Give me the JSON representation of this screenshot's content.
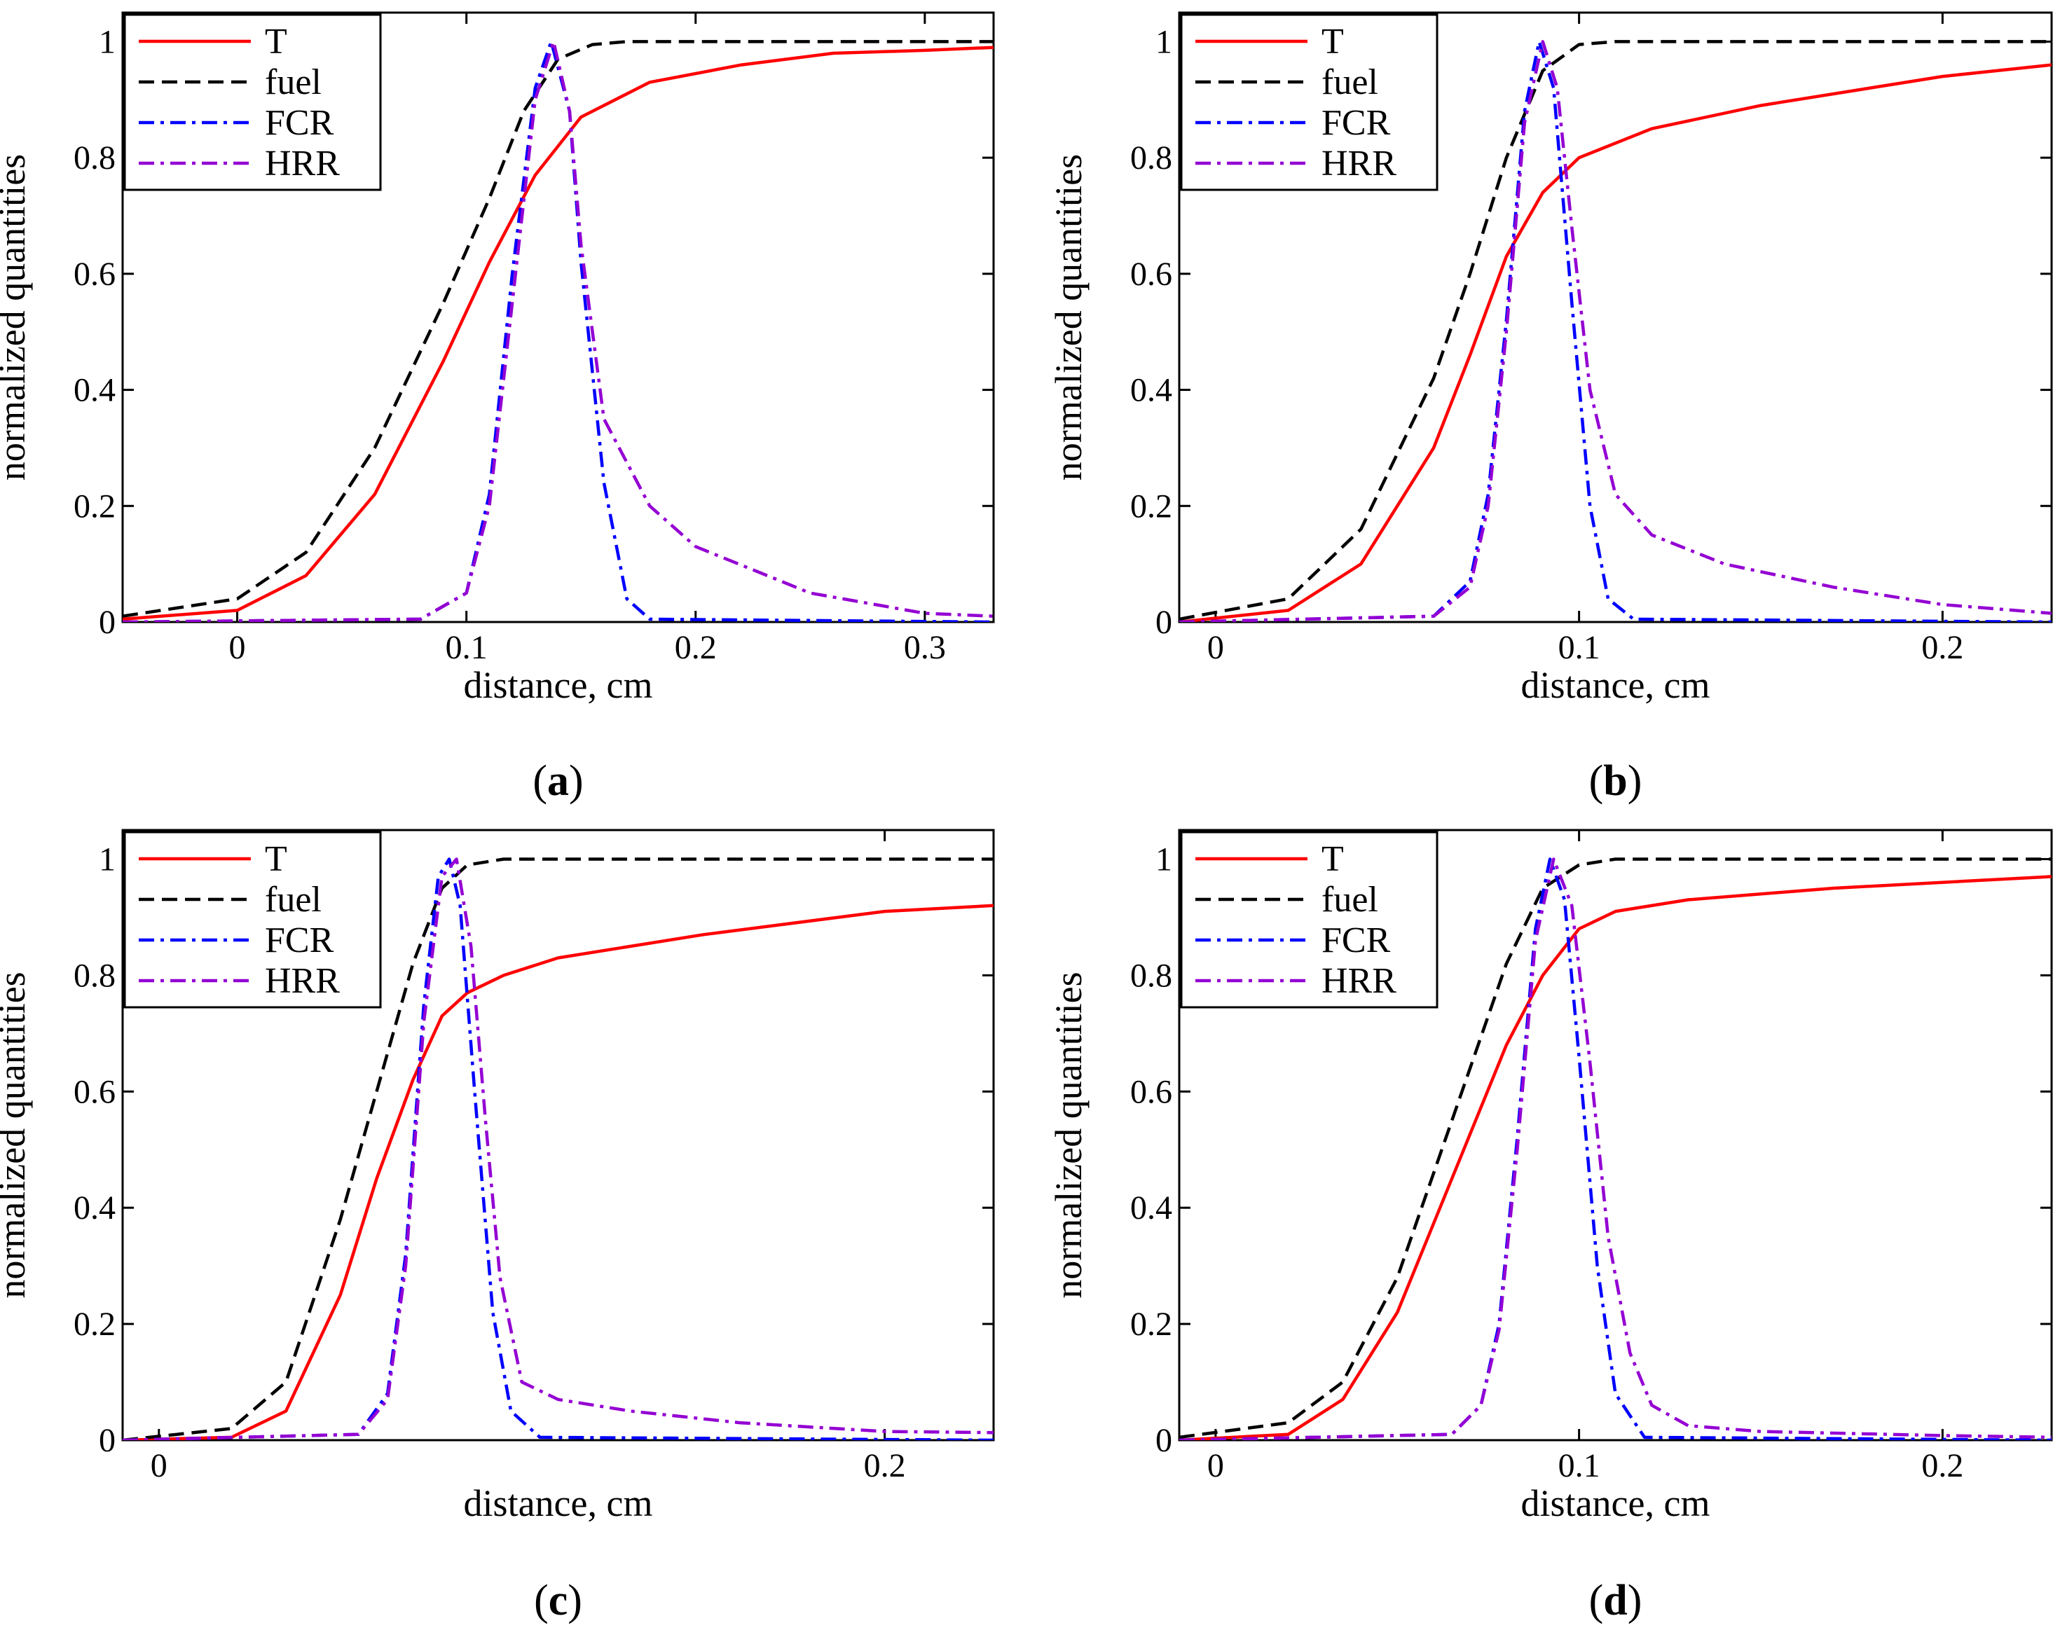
{
  "figure": {
    "legend_entries": [
      {
        "label": "T",
        "color": "#ff0000",
        "dash": "solid"
      },
      {
        "label": "fuel",
        "color": "#000000",
        "dash": "dashed"
      },
      {
        "label": "FCR",
        "color": "#0000ff",
        "dash": "dashdot"
      },
      {
        "label": "HRR",
        "color": "#9400d3",
        "dash": "dashdot"
      }
    ]
  },
  "chart_data": [
    {
      "type": "line",
      "panel_label": "a",
      "xlabel": "distance, cm",
      "ylabel": "normalized quantities",
      "xlim": [
        -0.05,
        0.33
      ],
      "ylim": [
        0,
        1.05
      ],
      "xticks": [
        0,
        0.1,
        0.2,
        0.3
      ],
      "xtick_labels": [
        "0",
        "0.1",
        "0.2",
        "0.3"
      ],
      "yticks": [
        0,
        0.2,
        0.4,
        0.6,
        0.8,
        1
      ],
      "ytick_labels": [
        "0",
        "0.2",
        "0.4",
        "0.6",
        "0.8",
        "1"
      ],
      "legend_position": "top-left",
      "grid": false,
      "series": [
        {
          "name": "T",
          "color": "#ff0000",
          "dash": "solid",
          "x": [
            -0.05,
            0,
            0.03,
            0.06,
            0.09,
            0.11,
            0.13,
            0.15,
            0.18,
            0.22,
            0.26,
            0.3,
            0.33
          ],
          "y": [
            0.005,
            0.02,
            0.08,
            0.22,
            0.45,
            0.62,
            0.77,
            0.87,
            0.93,
            0.96,
            0.98,
            0.985,
            0.99
          ]
        },
        {
          "name": "fuel",
          "color": "#000000",
          "dash": "dashed",
          "x": [
            -0.05,
            0,
            0.03,
            0.06,
            0.09,
            0.11,
            0.125,
            0.14,
            0.155,
            0.17,
            0.2,
            0.33
          ],
          "y": [
            0.01,
            0.04,
            0.12,
            0.3,
            0.55,
            0.73,
            0.88,
            0.97,
            0.995,
            1,
            1,
            1
          ]
        },
        {
          "name": "FCR",
          "color": "#0000ff",
          "dash": "dashdot",
          "x": [
            -0.05,
            0.08,
            0.1,
            0.11,
            0.12,
            0.13,
            0.137,
            0.145,
            0.15,
            0.16,
            0.17,
            0.18,
            0.33
          ],
          "y": [
            0,
            0.005,
            0.05,
            0.22,
            0.6,
            0.92,
            1,
            0.88,
            0.62,
            0.24,
            0.04,
            0.005,
            0
          ]
        },
        {
          "name": "HRR",
          "color": "#9400d3",
          "dash": "dashdot",
          "x": [
            -0.05,
            0.08,
            0.1,
            0.11,
            0.12,
            0.13,
            0.138,
            0.145,
            0.15,
            0.16,
            0.18,
            0.2,
            0.25,
            0.3,
            0.33
          ],
          "y": [
            0,
            0.005,
            0.05,
            0.2,
            0.55,
            0.9,
            1,
            0.88,
            0.65,
            0.35,
            0.2,
            0.13,
            0.05,
            0.015,
            0.01
          ]
        }
      ]
    },
    {
      "type": "line",
      "panel_label": "b",
      "xlabel": "distance, cm",
      "ylabel": "normalized quantities",
      "xlim": [
        -0.01,
        0.23
      ],
      "ylim": [
        0,
        1.05
      ],
      "xticks": [
        0,
        0.1,
        0.2
      ],
      "xtick_labels": [
        "0",
        "0.1",
        "0.2"
      ],
      "yticks": [
        0,
        0.2,
        0.4,
        0.6,
        0.8,
        1
      ],
      "ytick_labels": [
        "0",
        "0.2",
        "0.4",
        "0.6",
        "0.8",
        "1"
      ],
      "legend_position": "top-left",
      "grid": false,
      "series": [
        {
          "name": "T",
          "color": "#ff0000",
          "dash": "solid",
          "x": [
            -0.01,
            0.02,
            0.04,
            0.06,
            0.07,
            0.08,
            0.09,
            0.1,
            0.12,
            0.15,
            0.2,
            0.23
          ],
          "y": [
            0,
            0.02,
            0.1,
            0.3,
            0.46,
            0.63,
            0.74,
            0.8,
            0.85,
            0.89,
            0.94,
            0.96
          ]
        },
        {
          "name": "fuel",
          "color": "#000000",
          "dash": "dashed",
          "x": [
            -0.01,
            0.02,
            0.04,
            0.06,
            0.07,
            0.08,
            0.09,
            0.1,
            0.11,
            0.23
          ],
          "y": [
            0.005,
            0.04,
            0.16,
            0.42,
            0.6,
            0.8,
            0.95,
            0.995,
            1,
            1
          ]
        },
        {
          "name": "FCR",
          "color": "#0000ff",
          "dash": "dashdot",
          "x": [
            -0.01,
            0.06,
            0.07,
            0.075,
            0.08,
            0.085,
            0.089,
            0.093,
            0.098,
            0.103,
            0.108,
            0.115,
            0.23
          ],
          "y": [
            0,
            0.01,
            0.07,
            0.22,
            0.52,
            0.88,
            1,
            0.92,
            0.55,
            0.2,
            0.04,
            0.005,
            0
          ]
        },
        {
          "name": "HRR",
          "color": "#9400d3",
          "dash": "dashdot",
          "x": [
            -0.01,
            0.06,
            0.07,
            0.075,
            0.08,
            0.085,
            0.09,
            0.094,
            0.098,
            0.103,
            0.11,
            0.12,
            0.14,
            0.17,
            0.2,
            0.23
          ],
          "y": [
            0,
            0.01,
            0.06,
            0.2,
            0.5,
            0.86,
            1,
            0.92,
            0.68,
            0.4,
            0.22,
            0.15,
            0.1,
            0.06,
            0.03,
            0.015
          ]
        }
      ]
    },
    {
      "type": "line",
      "panel_label": "c",
      "xlabel": "distance, cm",
      "ylabel": "normalized quantities",
      "xlim": [
        -0.01,
        0.23
      ],
      "ylim": [
        0,
        1.05
      ],
      "xticks": [
        0,
        0.2
      ],
      "xtick_labels": [
        "0",
        "0.2"
      ],
      "yticks": [
        0,
        0.2,
        0.4,
        0.6,
        0.8,
        1
      ],
      "ytick_labels": [
        "0",
        "0.2",
        "0.4",
        "0.6",
        "0.8",
        "1"
      ],
      "legend_position": "top-left",
      "grid": false,
      "series": [
        {
          "name": "T",
          "color": "#ff0000",
          "dash": "solid",
          "x": [
            -0.01,
            0.02,
            0.035,
            0.05,
            0.06,
            0.07,
            0.078,
            0.085,
            0.095,
            0.11,
            0.15,
            0.2,
            0.23
          ],
          "y": [
            0,
            0.005,
            0.05,
            0.25,
            0.45,
            0.62,
            0.73,
            0.77,
            0.8,
            0.83,
            0.87,
            0.91,
            0.92
          ]
        },
        {
          "name": "fuel",
          "color": "#000000",
          "dash": "dashed",
          "x": [
            -0.01,
            0.02,
            0.035,
            0.05,
            0.06,
            0.07,
            0.078,
            0.085,
            0.095,
            0.23
          ],
          "y": [
            0,
            0.02,
            0.1,
            0.38,
            0.6,
            0.82,
            0.95,
            0.99,
            1,
            1
          ]
        },
        {
          "name": "FCR",
          "color": "#0000ff",
          "dash": "dashdot",
          "x": [
            -0.01,
            0.055,
            0.063,
            0.068,
            0.073,
            0.077,
            0.08,
            0.083,
            0.087,
            0.092,
            0.097,
            0.105,
            0.23
          ],
          "y": [
            0,
            0.01,
            0.08,
            0.32,
            0.75,
            0.97,
            1,
            0.92,
            0.6,
            0.22,
            0.05,
            0.005,
            0
          ]
        },
        {
          "name": "HRR",
          "color": "#9400d3",
          "dash": "dashdot",
          "x": [
            -0.01,
            0.055,
            0.063,
            0.068,
            0.073,
            0.078,
            0.082,
            0.086,
            0.09,
            0.094,
            0.1,
            0.11,
            0.13,
            0.16,
            0.2,
            0.23
          ],
          "y": [
            0,
            0.01,
            0.07,
            0.3,
            0.72,
            0.97,
            1,
            0.85,
            0.55,
            0.28,
            0.1,
            0.07,
            0.05,
            0.03,
            0.015,
            0.013
          ]
        }
      ]
    },
    {
      "type": "line",
      "panel_label": "d",
      "xlabel": "distance, cm",
      "ylabel": "normalized quantities",
      "xlim": [
        -0.01,
        0.23
      ],
      "ylim": [
        0,
        1.05
      ],
      "xticks": [
        0,
        0.1,
        0.2
      ],
      "xtick_labels": [
        "0",
        "0.1",
        "0.2"
      ],
      "yticks": [
        0,
        0.2,
        0.4,
        0.6,
        0.8,
        1
      ],
      "ytick_labels": [
        "0",
        "0.2",
        "0.4",
        "0.6",
        "0.8",
        "1"
      ],
      "legend_position": "top-left",
      "grid": false,
      "series": [
        {
          "name": "T",
          "color": "#ff0000",
          "dash": "solid",
          "x": [
            -0.01,
            0.02,
            0.035,
            0.05,
            0.065,
            0.08,
            0.09,
            0.1,
            0.11,
            0.13,
            0.17,
            0.23
          ],
          "y": [
            0,
            0.01,
            0.07,
            0.22,
            0.45,
            0.68,
            0.8,
            0.88,
            0.91,
            0.93,
            0.95,
            0.97
          ]
        },
        {
          "name": "fuel",
          "color": "#000000",
          "dash": "dashed",
          "x": [
            -0.01,
            0.02,
            0.035,
            0.05,
            0.065,
            0.08,
            0.09,
            0.1,
            0.11,
            0.23
          ],
          "y": [
            0.005,
            0.03,
            0.1,
            0.28,
            0.55,
            0.82,
            0.95,
            0.99,
            1,
            1
          ]
        },
        {
          "name": "FCR",
          "color": "#0000ff",
          "dash": "dashdot",
          "x": [
            -0.01,
            0.065,
            0.073,
            0.078,
            0.083,
            0.088,
            0.092,
            0.096,
            0.1,
            0.105,
            0.11,
            0.118,
            0.23
          ],
          "y": [
            0,
            0.01,
            0.06,
            0.2,
            0.52,
            0.88,
            1,
            0.93,
            0.66,
            0.3,
            0.08,
            0.005,
            0
          ]
        },
        {
          "name": "HRR",
          "color": "#9400d3",
          "dash": "dashdot",
          "x": [
            -0.01,
            0.065,
            0.073,
            0.078,
            0.083,
            0.088,
            0.093,
            0.098,
            0.103,
            0.108,
            0.114,
            0.12,
            0.13,
            0.15,
            0.2,
            0.23
          ],
          "y": [
            0,
            0.01,
            0.06,
            0.19,
            0.5,
            0.86,
            1,
            0.92,
            0.65,
            0.35,
            0.15,
            0.06,
            0.025,
            0.015,
            0.008,
            0.005
          ]
        }
      ]
    }
  ]
}
